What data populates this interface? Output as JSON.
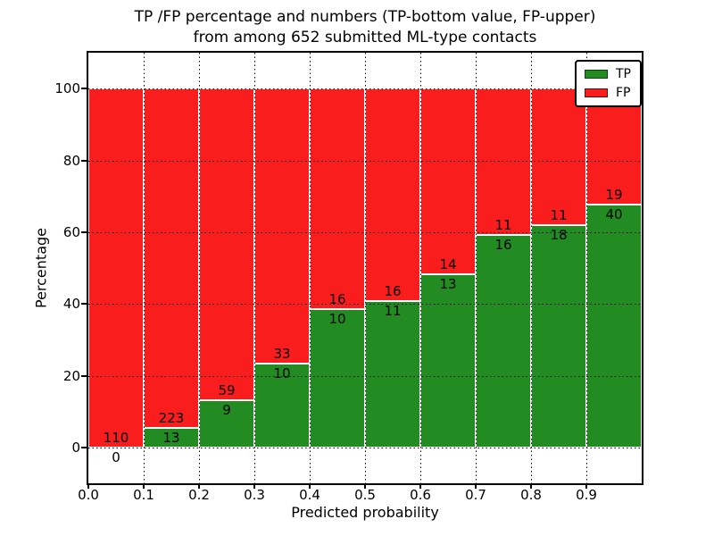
{
  "figure": {
    "title_line1": "TP /FP percentage and numbers (TP-bottom value, FP-upper)",
    "title_line2": "from among 652 submitted ML-type contacts"
  },
  "chart_data": {
    "type": "bar",
    "stacked": true,
    "normalized_to": "100 percent per bin",
    "title": "TP /FP percentage and numbers (TP-bottom value, FP-upper) from among 652 submitted ML-type contacts",
    "xlabel": "Predicted probability",
    "ylabel": "Percentage",
    "xlim": [
      0.0,
      1.0
    ],
    "ylim": [
      -10,
      110
    ],
    "bin_width": 0.1,
    "x_tick_labels": [
      "0.0",
      "0.1",
      "0.2",
      "0.3",
      "0.4",
      "0.5",
      "0.6",
      "0.7",
      "0.8",
      "0.9"
    ],
    "y_ticks": [
      0,
      20,
      40,
      60,
      80,
      100
    ],
    "grid": true,
    "grid_style": "dotted",
    "legend_position": "upper right",
    "total_contacts": 652,
    "categories": [
      "0.0-0.1",
      "0.1-0.2",
      "0.2-0.3",
      "0.3-0.4",
      "0.4-0.5",
      "0.5-0.6",
      "0.6-0.7",
      "0.7-0.8",
      "0.8-0.9",
      "0.9-1.0"
    ],
    "series": [
      {
        "name": "TP",
        "color": "#228b22",
        "counts": [
          0,
          13,
          9,
          10,
          10,
          11,
          13,
          16,
          18,
          40
        ]
      },
      {
        "name": "FP",
        "color": "#fa1d1d",
        "counts": [
          110,
          223,
          59,
          33,
          16,
          16,
          14,
          11,
          11,
          19
        ]
      }
    ],
    "label_rule": "TP count printed below the TP/FP boundary, FP count printed above it"
  }
}
